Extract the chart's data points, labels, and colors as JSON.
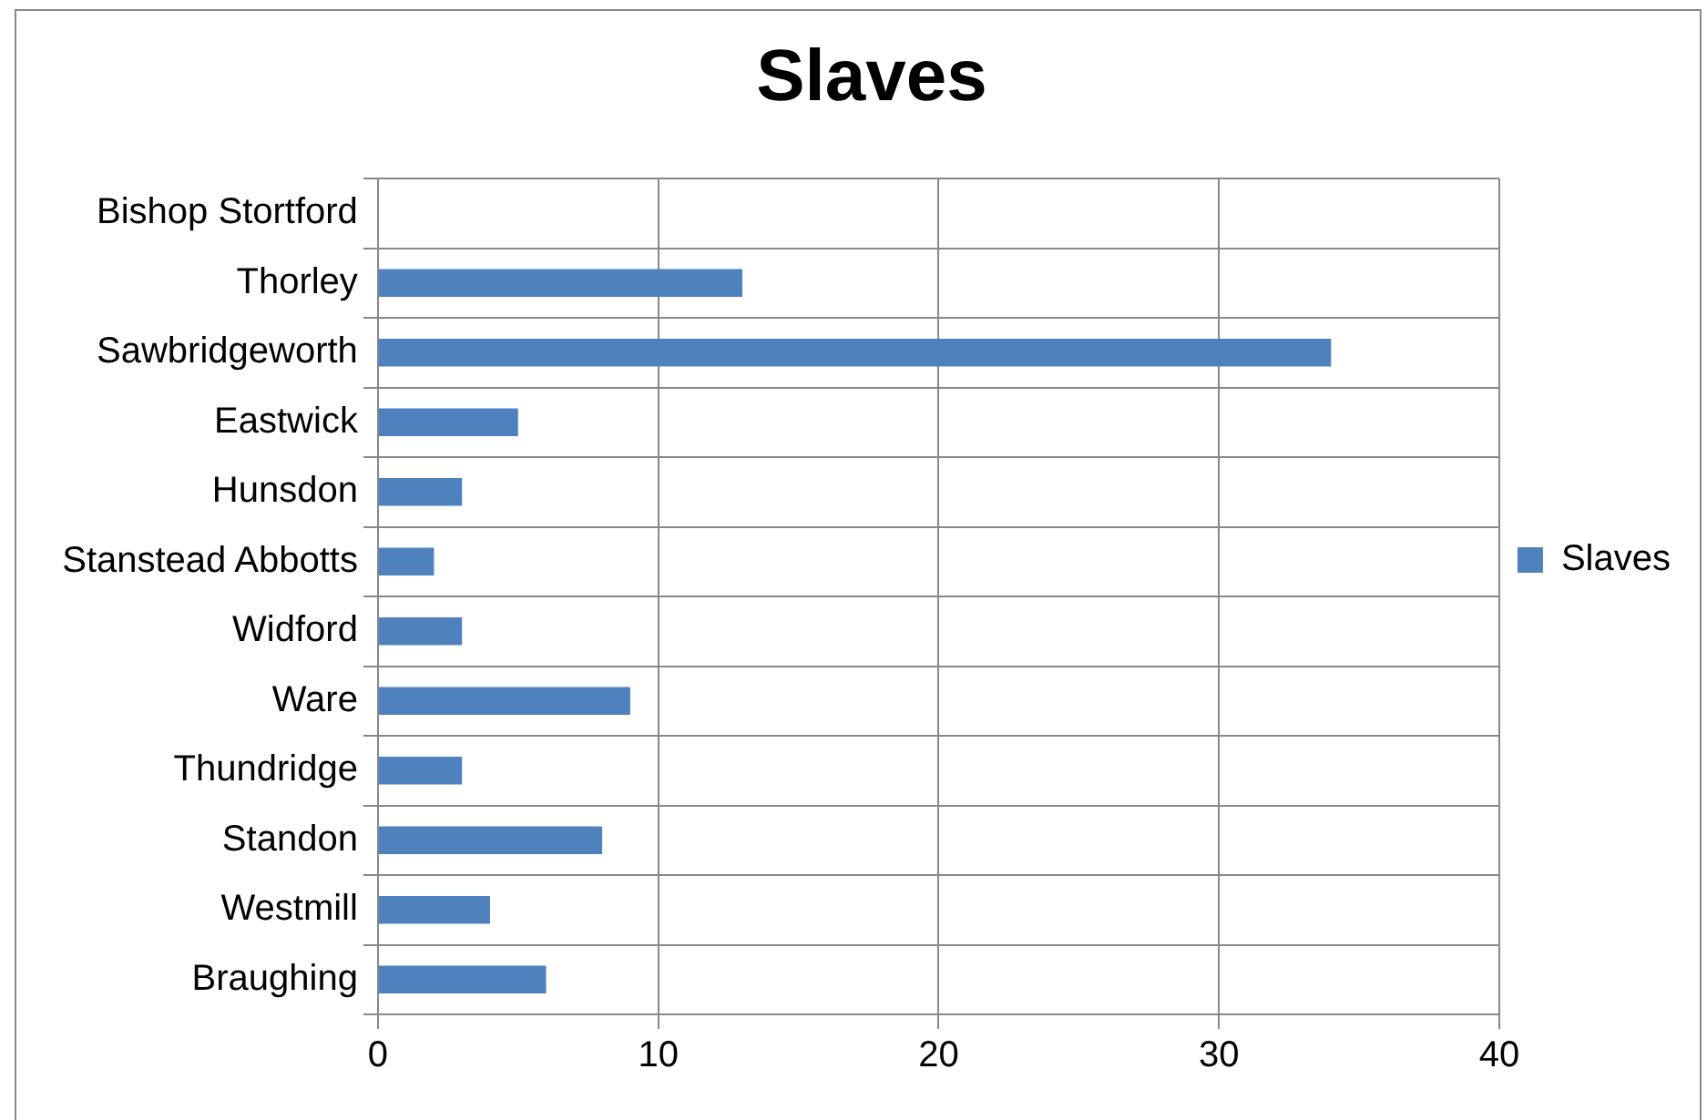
{
  "chart_data": {
    "type": "bar",
    "orientation": "horizontal",
    "title": "Slaves",
    "categories": [
      "Bishop Stortford",
      "Thorley",
      "Sawbridgeworth",
      "Eastwick",
      "Hunsdon",
      "Stanstead Abbotts",
      "Widford",
      "Ware",
      "Thundridge",
      "Standon",
      "Westmill",
      "Braughing"
    ],
    "series": [
      {
        "name": "Slaves",
        "color": "#4f81bd",
        "values": [
          0,
          13,
          34,
          5,
          3,
          2,
          3,
          9,
          3,
          8,
          4,
          6
        ]
      }
    ],
    "xlim": [
      0,
      40
    ],
    "xticks": [
      0,
      10,
      20,
      30,
      40
    ],
    "grid": true,
    "legend": "right"
  }
}
